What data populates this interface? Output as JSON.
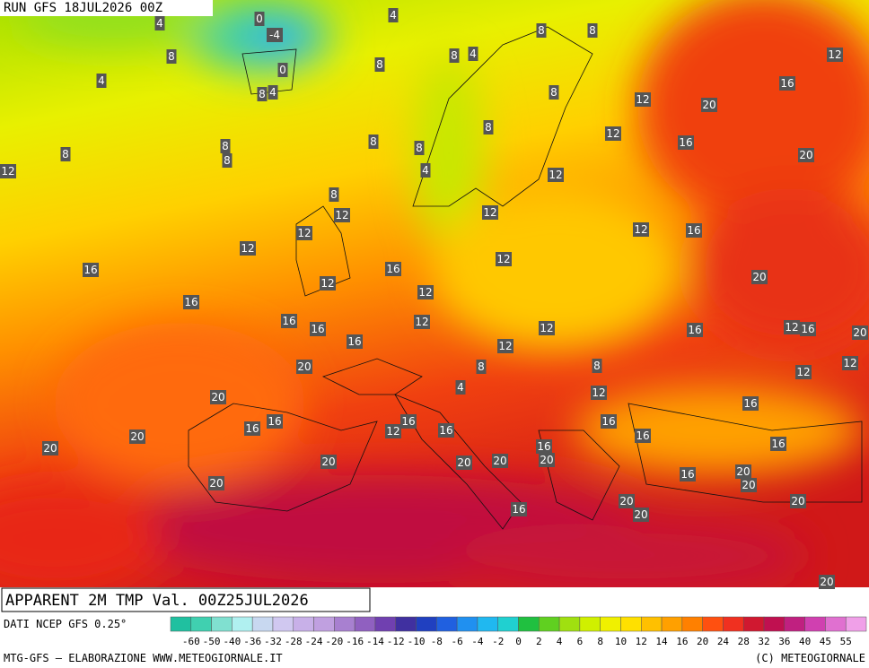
{
  "header": {
    "run": "RUN GFS 18JUL2026 00Z"
  },
  "map": {
    "labels": [
      0,
      4,
      4,
      -4,
      8,
      8,
      12,
      8,
      8,
      4,
      0,
      8,
      4,
      8,
      4,
      8,
      12,
      20,
      16,
      8,
      12,
      16,
      8,
      8,
      8,
      8,
      8,
      12,
      4,
      12,
      20,
      8,
      12,
      12,
      12,
      16,
      12,
      12,
      12,
      16,
      16,
      20,
      12,
      12,
      16,
      16,
      12,
      16,
      12,
      16,
      12,
      16,
      20,
      16,
      12,
      20,
      8,
      8,
      12,
      12,
      4,
      12,
      20,
      16,
      16,
      16,
      16,
      16,
      12,
      16,
      16,
      20,
      20,
      16,
      16,
      20,
      20,
      20,
      20,
      16,
      20,
      20,
      20,
      20,
      20,
      20,
      16,
      20
    ]
  },
  "legend": {
    "title": "APPARENT 2M TMP Val. 00Z25JUL2026",
    "source": "DATI NCEP GFS 0.25°",
    "ticks": [
      -60,
      -50,
      -40,
      -36,
      -32,
      -28,
      -24,
      -20,
      -16,
      -14,
      -12,
      -10,
      -8,
      -6,
      -4,
      -2,
      0,
      2,
      4,
      6,
      8,
      10,
      12,
      14,
      16,
      20,
      24,
      28,
      32,
      36,
      40,
      45,
      55
    ]
  },
  "footer": {
    "left": "MTG-GFS — ELABORAZIONE WWW.METEOGIORNALE.IT",
    "right": "(C) METEOGIORNALE"
  }
}
